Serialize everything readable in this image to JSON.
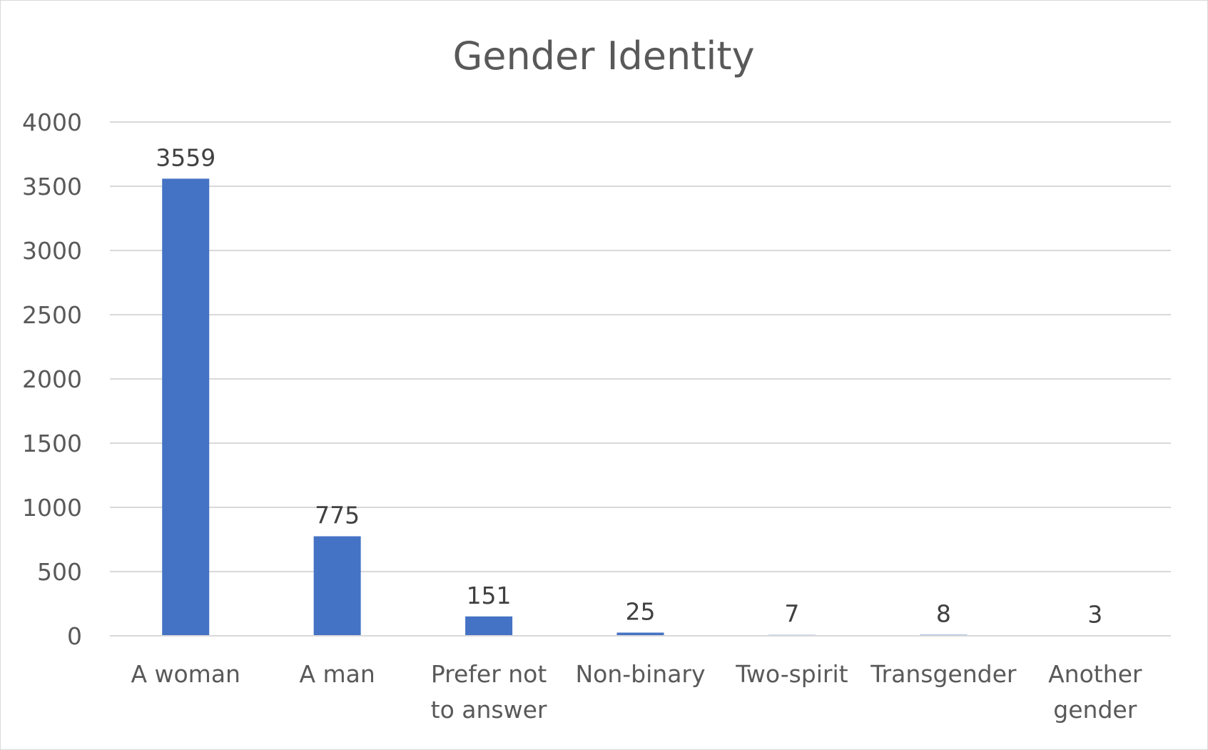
{
  "chart_data": {
    "type": "bar",
    "title": "Gender Identity",
    "categories": [
      [
        "A woman"
      ],
      [
        "A man"
      ],
      [
        "Prefer not",
        "to answer"
      ],
      [
        "Non-binary"
      ],
      [
        "Two-spirit"
      ],
      [
        "Transgender"
      ],
      [
        "Another",
        "gender"
      ]
    ],
    "values": [
      3559,
      775,
      151,
      25,
      7,
      8,
      3
    ],
    "data_labels": [
      "3559",
      "775",
      "151",
      "25",
      "7",
      "8",
      "3"
    ],
    "y_ticks": [
      0,
      500,
      1000,
      1500,
      2000,
      2500,
      3000,
      3500,
      4000
    ],
    "ylim": [
      0,
      4000
    ],
    "grid": true,
    "legend": "none",
    "bar_color": "#4472C4"
  }
}
